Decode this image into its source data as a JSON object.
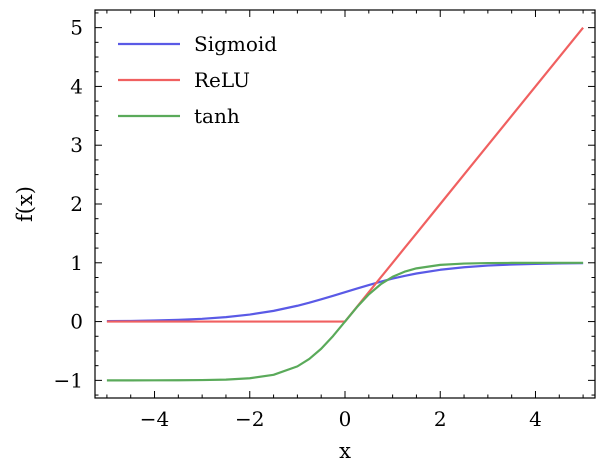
{
  "chart_data": {
    "type": "line",
    "title": "",
    "xlabel": "x",
    "ylabel": "f(x)",
    "xlim": [
      -5.25,
      5.25
    ],
    "ylim": [
      -1.3,
      5.3
    ],
    "xticks": [
      -4,
      -2,
      0,
      2,
      4
    ],
    "xtick_labels": [
      "−4",
      "−2",
      "0",
      "2",
      "4"
    ],
    "yticks": [
      -1,
      0,
      1,
      2,
      3,
      4,
      5
    ],
    "ytick_labels": [
      "−1",
      "0",
      "1",
      "2",
      "3",
      "4",
      "5"
    ],
    "grid": false,
    "legend_position": "top-left",
    "x": [
      -5,
      -4.5,
      -4,
      -3.5,
      -3,
      -2.5,
      -2,
      -1.5,
      -1,
      -0.75,
      -0.5,
      -0.25,
      0,
      0.25,
      0.5,
      0.75,
      1,
      1.25,
      1.5,
      2,
      2.5,
      3,
      3.5,
      4,
      4.5,
      5
    ],
    "series": [
      {
        "name": "Sigmoid",
        "color": "#5a5ae6",
        "values": [
          0.007,
          0.011,
          0.018,
          0.029,
          0.047,
          0.076,
          0.119,
          0.182,
          0.269,
          0.321,
          0.378,
          0.438,
          0.5,
          0.562,
          0.622,
          0.679,
          0.731,
          0.777,
          0.818,
          0.881,
          0.924,
          0.953,
          0.971,
          0.982,
          0.989,
          0.993
        ]
      },
      {
        "name": "ReLU",
        "color": "#f06060",
        "values": [
          0,
          0,
          0,
          0,
          0,
          0,
          0,
          0,
          0,
          0,
          0,
          0,
          0,
          0.25,
          0.5,
          0.75,
          1,
          1.25,
          1.5,
          2,
          2.5,
          3,
          3.5,
          4,
          4.5,
          5
        ]
      },
      {
        "name": "tanh",
        "color": "#5aaa5a",
        "values": [
          -1.0,
          -1.0,
          -0.999,
          -0.998,
          -0.995,
          -0.987,
          -0.964,
          -0.905,
          -0.762,
          -0.635,
          -0.462,
          -0.245,
          0,
          0.245,
          0.462,
          0.635,
          0.762,
          0.848,
          0.905,
          0.964,
          0.987,
          0.995,
          0.998,
          0.999,
          1.0,
          1.0
        ]
      }
    ]
  }
}
